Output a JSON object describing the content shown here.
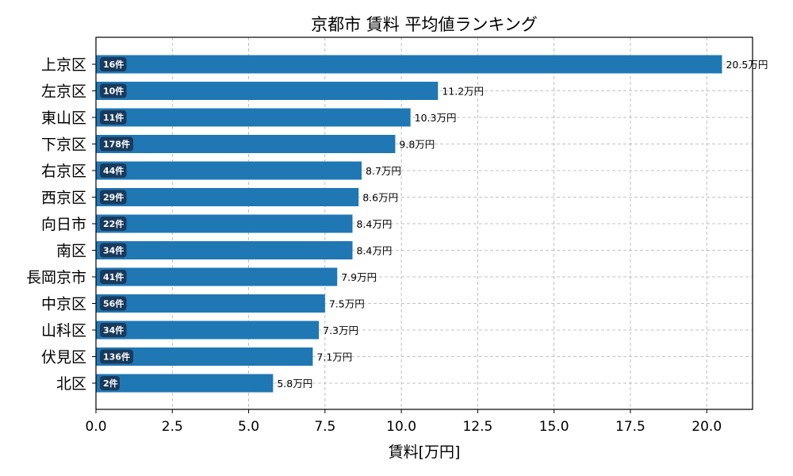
{
  "chart_data": {
    "type": "bar",
    "orientation": "horizontal",
    "title": "京都市 賃料 平均値ランキング",
    "xlabel": "賃料[万円]",
    "ylabel": "",
    "xlim": [
      0,
      21.5
    ],
    "xticks": [
      "0.0",
      "2.5",
      "5.0",
      "7.5",
      "10.0",
      "12.5",
      "15.0",
      "17.5",
      "20.0"
    ],
    "grid": true,
    "bar_color": "#1f77b4",
    "badge_color": "#1a3a5c",
    "categories": [
      "上京区",
      "左京区",
      "東山区",
      "下京区",
      "右京区",
      "西京区",
      "向日市",
      "南区",
      "長岡京市",
      "中京区",
      "山科区",
      "伏見区",
      "北区"
    ],
    "values": [
      20.5,
      11.2,
      10.3,
      9.8,
      8.7,
      8.6,
      8.4,
      8.4,
      7.9,
      7.5,
      7.3,
      7.1,
      5.8
    ],
    "value_labels": [
      "20.5万円",
      "11.2万円",
      "10.3万円",
      "9.8万円",
      "8.7万円",
      "8.6万円",
      "8.4万円",
      "8.4万円",
      "7.9万円",
      "7.5万円",
      "7.3万円",
      "7.1万円",
      "5.8万円"
    ],
    "counts": [
      "16件",
      "10件",
      "11件",
      "178件",
      "44件",
      "29件",
      "22件",
      "34件",
      "41件",
      "56件",
      "34件",
      "136件",
      "2件"
    ]
  }
}
